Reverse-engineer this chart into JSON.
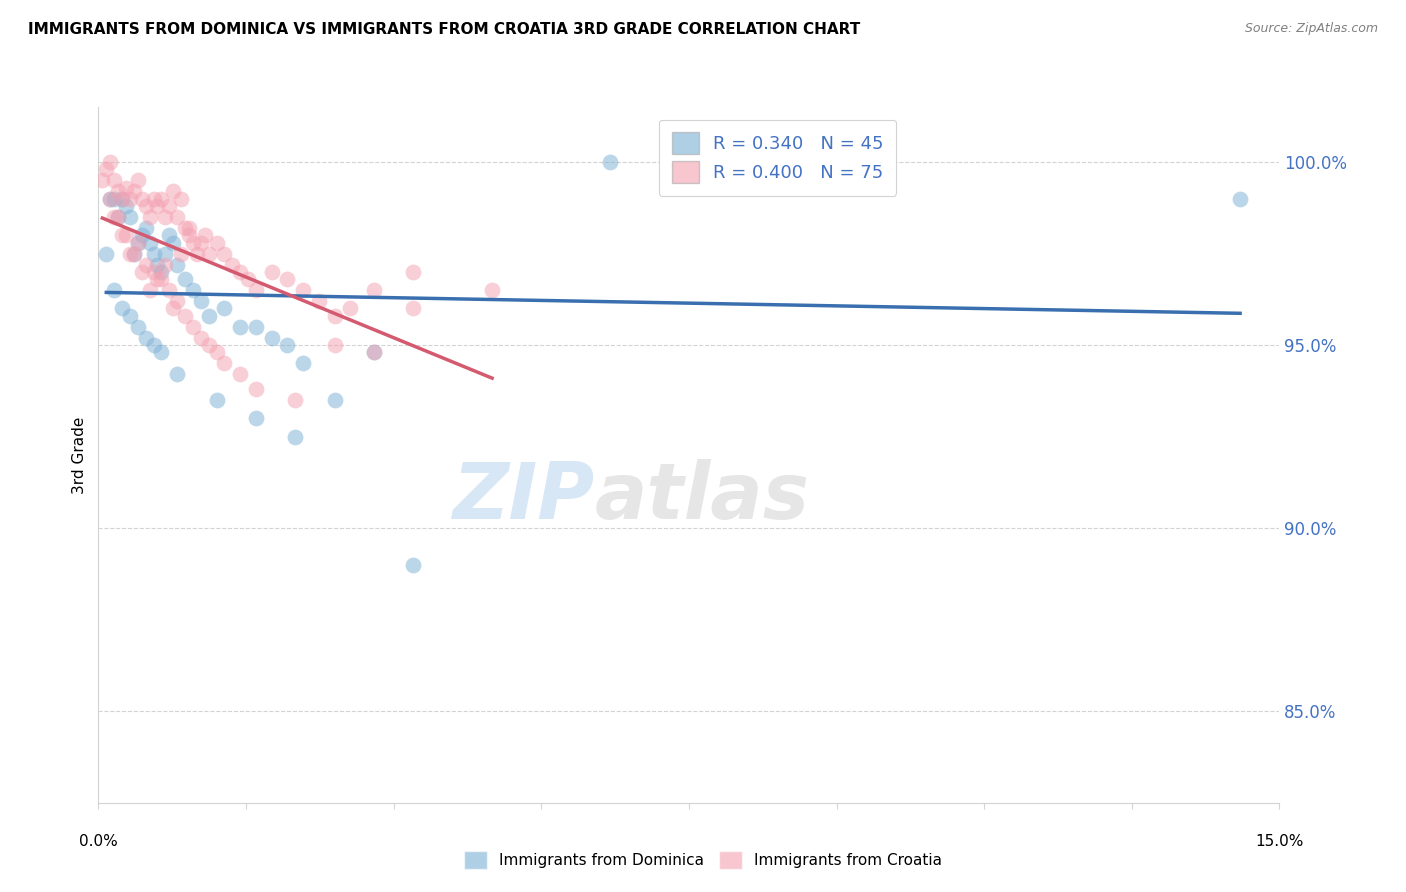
{
  "title": "IMMIGRANTS FROM DOMINICA VS IMMIGRANTS FROM CROATIA 3RD GRADE CORRELATION CHART",
  "source": "Source: ZipAtlas.com",
  "ylabel": "3rd Grade",
  "y_ticks": [
    85.0,
    90.0,
    95.0,
    100.0
  ],
  "y_tick_labels": [
    "85.0%",
    "90.0%",
    "95.0%",
    "100.0%"
  ],
  "xlim": [
    0.0,
    15.0
  ],
  "ylim": [
    82.5,
    101.5
  ],
  "dominica_color": "#7bafd4",
  "croatia_color": "#f4a0b0",
  "dominica_line_color": "#3a6faf",
  "croatia_line_color": "#d45a70",
  "R_dominica": 0.34,
  "N_dominica": 45,
  "R_croatia": 0.4,
  "N_croatia": 75,
  "legend_label_dominica": "Immigrants from Dominica",
  "legend_label_croatia": "Immigrants from Croatia",
  "watermark_zip": "ZIP",
  "watermark_atlas": "atlas",
  "dominica_x": [
    0.1,
    0.15,
    0.2,
    0.25,
    0.3,
    0.35,
    0.4,
    0.45,
    0.5,
    0.55,
    0.6,
    0.65,
    0.7,
    0.75,
    0.8,
    0.85,
    0.9,
    0.95,
    1.0,
    1.1,
    1.2,
    1.3,
    1.4,
    1.6,
    1.8,
    2.0,
    2.2,
    2.4,
    2.6,
    3.0,
    3.5,
    0.2,
    0.3,
    0.4,
    0.5,
    0.6,
    0.7,
    0.8,
    1.0,
    1.5,
    2.0,
    2.5,
    4.0,
    6.5,
    14.5
  ],
  "dominica_y": [
    97.5,
    99.0,
    99.0,
    98.5,
    99.0,
    98.8,
    98.5,
    97.5,
    97.8,
    98.0,
    98.2,
    97.8,
    97.5,
    97.2,
    97.0,
    97.5,
    98.0,
    97.8,
    97.2,
    96.8,
    96.5,
    96.2,
    95.8,
    96.0,
    95.5,
    95.5,
    95.2,
    95.0,
    94.5,
    93.5,
    94.8,
    96.5,
    96.0,
    95.8,
    95.5,
    95.2,
    95.0,
    94.8,
    94.2,
    93.5,
    93.0,
    92.5,
    89.0,
    100.0,
    99.0
  ],
  "croatia_x": [
    0.05,
    0.1,
    0.15,
    0.2,
    0.25,
    0.3,
    0.35,
    0.4,
    0.45,
    0.5,
    0.55,
    0.6,
    0.65,
    0.7,
    0.75,
    0.8,
    0.85,
    0.9,
    0.95,
    1.0,
    1.05,
    1.1,
    1.15,
    1.2,
    1.25,
    1.3,
    1.35,
    1.4,
    1.5,
    1.6,
    1.7,
    1.8,
    1.9,
    2.0,
    2.2,
    2.4,
    2.6,
    2.8,
    3.0,
    3.2,
    3.5,
    4.0,
    0.2,
    0.3,
    0.4,
    0.5,
    0.6,
    0.7,
    0.8,
    0.9,
    1.0,
    1.1,
    1.2,
    1.3,
    1.4,
    1.5,
    1.6,
    1.8,
    2.0,
    2.5,
    3.0,
    3.5,
    4.0,
    5.0,
    0.15,
    0.25,
    0.35,
    0.45,
    0.55,
    0.65,
    0.75,
    0.85,
    0.95,
    1.05,
    1.15
  ],
  "croatia_y": [
    99.5,
    99.8,
    100.0,
    99.5,
    99.2,
    99.0,
    99.3,
    99.0,
    99.2,
    99.5,
    99.0,
    98.8,
    98.5,
    99.0,
    98.8,
    99.0,
    98.5,
    98.8,
    99.2,
    98.5,
    99.0,
    98.2,
    98.0,
    97.8,
    97.5,
    97.8,
    98.0,
    97.5,
    97.8,
    97.5,
    97.2,
    97.0,
    96.8,
    96.5,
    97.0,
    96.8,
    96.5,
    96.2,
    95.8,
    96.0,
    96.5,
    97.0,
    98.5,
    98.0,
    97.5,
    97.8,
    97.2,
    97.0,
    96.8,
    96.5,
    96.2,
    95.8,
    95.5,
    95.2,
    95.0,
    94.8,
    94.5,
    94.2,
    93.8,
    93.5,
    95.0,
    94.8,
    96.0,
    96.5,
    99.0,
    98.5,
    98.0,
    97.5,
    97.0,
    96.5,
    96.8,
    97.2,
    96.0,
    97.5,
    98.2
  ]
}
